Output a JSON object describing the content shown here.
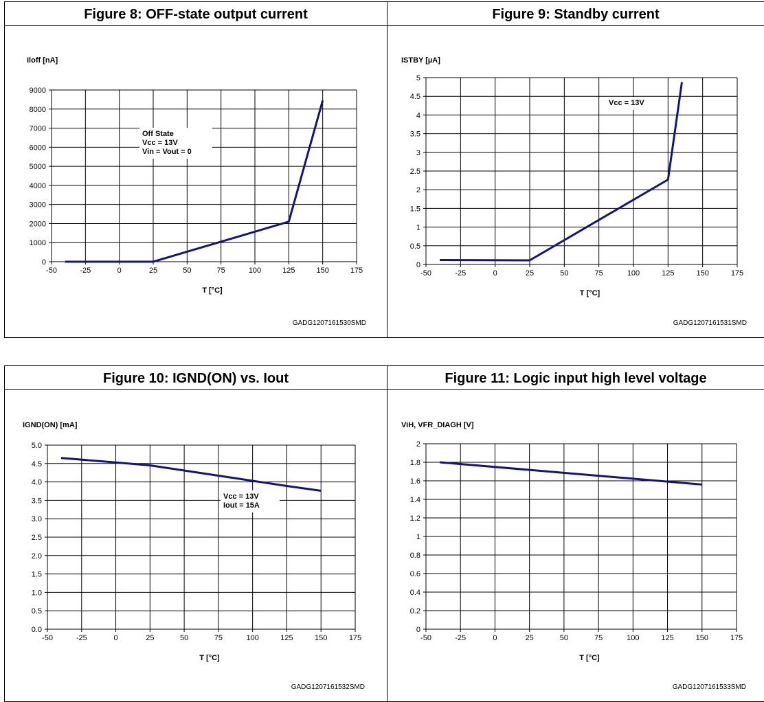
{
  "chart_data": [
    {
      "type": "line",
      "title": "Figure 8: OFF-state output current",
      "ylabel": "Iloff [nA]",
      "xlabel": "T [°C]",
      "xlim": [
        -50,
        175
      ],
      "ylim": [
        0,
        9000
      ],
      "xticks": [
        "-50",
        "-25",
        "0",
        "25",
        "50",
        "75",
        "100",
        "125",
        "150",
        "175"
      ],
      "yticks": [
        "0",
        "1000",
        "2000",
        "3000",
        "4000",
        "5000",
        "6000",
        "7000",
        "8000",
        "9000"
      ],
      "grid": true,
      "color": "#14147a",
      "series": [
        {
          "x": [
            -40,
            25,
            125,
            150
          ],
          "y": [
            0,
            0,
            2100,
            8450
          ]
        }
      ],
      "annotation": {
        "lines": [
          "Off State",
          "Vcc  = 13V",
          "Vin = Vout  = 0"
        ],
        "x": 0.2
      },
      "footnote": "GADG1207161530SMD"
    },
    {
      "type": "line",
      "title": "Figure 9: Standby current",
      "ylabel": "ISTBY [µA]",
      "xlabel": "T [°C]",
      "xlim": [
        -50,
        175
      ],
      "ylim": [
        0,
        5
      ],
      "xticks": [
        "-50",
        "-25",
        "0",
        "25",
        "50",
        "75",
        "100",
        "125",
        "150",
        "175"
      ],
      "yticks": [
        "0",
        "0.5",
        "1",
        "1.5",
        "2",
        "2.5",
        "3",
        "3.5",
        "4",
        "4.5",
        "5"
      ],
      "grid": true,
      "color": "#14147a",
      "series": [
        {
          "x": [
            -40,
            25,
            125,
            135
          ],
          "y": [
            0.12,
            0.11,
            2.27,
            4.88
          ]
        }
      ],
      "annotation": {
        "lines": [
          "Vcc  = 13V"
        ],
        "x": 0.6
      },
      "footnote": "GADG1207161531SMD"
    },
    {
      "type": "line",
      "title": "Figure 10: IGND(ON) vs. Iout",
      "ylabel": "IGND(ON) [mA]",
      "xlabel": "T [°C]",
      "xlim": [
        -50,
        175
      ],
      "ylim": [
        0,
        5
      ],
      "xticks": [
        "-50",
        "-25",
        "0",
        "25",
        "50",
        "75",
        "100",
        "125",
        "150",
        "175"
      ],
      "yticks": [
        "0.0",
        "0.5",
        "1.0",
        "1.5",
        "2.0",
        "2.5",
        "3.0",
        "3.5",
        "4.0",
        "4.5",
        "5.0"
      ],
      "grid": true,
      "color": "#14147a",
      "series": [
        {
          "x": [
            -40,
            0,
            25,
            50,
            75,
            100,
            125,
            150
          ],
          "y": [
            4.65,
            4.53,
            4.45,
            4.31,
            4.17,
            4.03,
            3.89,
            3.76
          ]
        }
      ],
      "annotation": {
        "lines": [
          "Vcc  = 13V",
          "Iout  = 15A"
        ],
        "x": 0.6
      },
      "footnote": "GADG1207161532SMD"
    },
    {
      "type": "line",
      "title": "Figure 11: Logic input high level voltage",
      "ylabel": "ViH, VFR_DIAGH  [V]",
      "xlabel": "T [°C]",
      "xlim": [
        -50,
        175
      ],
      "ylim": [
        0,
        2
      ],
      "xticks": [
        "-50",
        "-25",
        "0",
        "25",
        "50",
        "75",
        "100",
        "125",
        "150",
        "175"
      ],
      "yticks": [
        "0",
        "0.2",
        "0.4",
        "0.6",
        "0.8",
        "1",
        "1.2",
        "1.4",
        "1.6",
        "1.8",
        "2"
      ],
      "grid": true,
      "color": "#14147a",
      "series": [
        {
          "x": [
            -40,
            150
          ],
          "y": [
            1.8,
            1.56
          ]
        }
      ],
      "footnote": "GADG1207161533SMD"
    }
  ]
}
